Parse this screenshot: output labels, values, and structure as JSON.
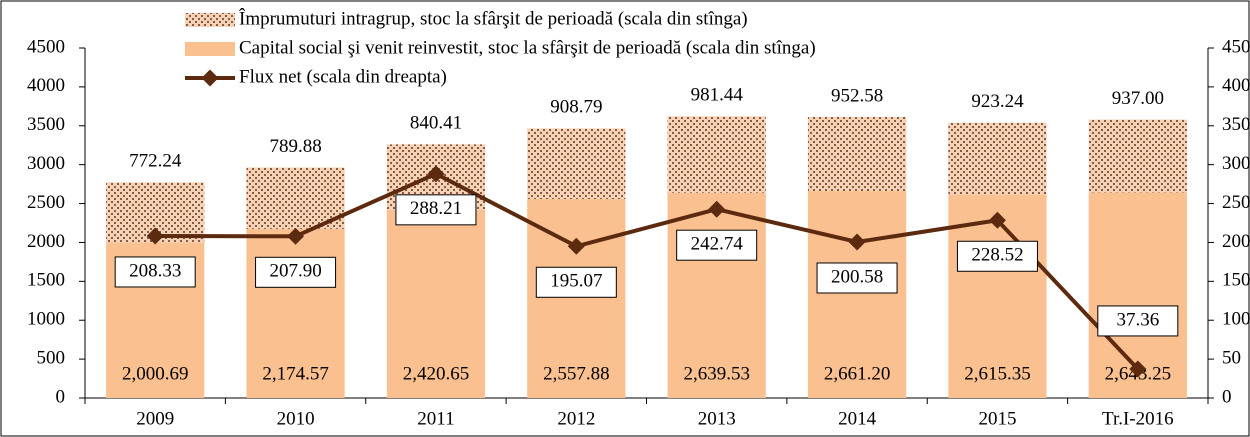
{
  "chart_data": {
    "type": "bar",
    "stacked": true,
    "categories": [
      "2009",
      "2010",
      "2011",
      "2012",
      "2013",
      "2014",
      "2015",
      "Tr.I-2016"
    ],
    "series": [
      {
        "name": "Capital social şi venit reinvestit, stoc la sfârşit de perioadă (scala din stînga)",
        "color": "#fac090",
        "values": [
          2000.69,
          2174.57,
          2420.65,
          2557.88,
          2639.53,
          2661.2,
          2615.35,
          2643.25
        ],
        "value_labels": [
          "2,000.69",
          "2,174.57",
          "2,420.65",
          "2,557.88",
          "2,639.53",
          "2,661.20",
          "2,615.35",
          "2,643.25"
        ]
      },
      {
        "name": "Împrumuturi intragrup, stoc la sfârşit de perioadă (scala din stînga)",
        "color": "#8b5a3c",
        "values": [
          772.24,
          789.88,
          840.41,
          908.79,
          981.44,
          952.58,
          923.24,
          937.0
        ],
        "value_labels": [
          "772.24",
          "789.88",
          "840.41",
          "908.79",
          "981.44",
          "952.58",
          "923.24",
          "937.00"
        ]
      },
      {
        "name": "Flux net (scala din dreapta)",
        "type": "line",
        "axis": "y2",
        "color": "#5c2a0e",
        "values": [
          208.33,
          207.9,
          288.21,
          195.07,
          242.74,
          200.58,
          228.52,
          37.36
        ],
        "value_labels": [
          "208.33",
          "207.90",
          "288.21",
          "195.07",
          "242.74",
          "200.58",
          "228.52",
          "37.36"
        ]
      }
    ],
    "ylim": [
      0,
      4500
    ],
    "yticks": [
      0,
      500,
      1000,
      1500,
      2000,
      2500,
      3000,
      3500,
      4000,
      4500
    ],
    "y2lim": [
      0,
      450
    ],
    "y2ticks": [
      0,
      50,
      100,
      150,
      200,
      250,
      300,
      350,
      400,
      450
    ],
    "legend": "top"
  }
}
